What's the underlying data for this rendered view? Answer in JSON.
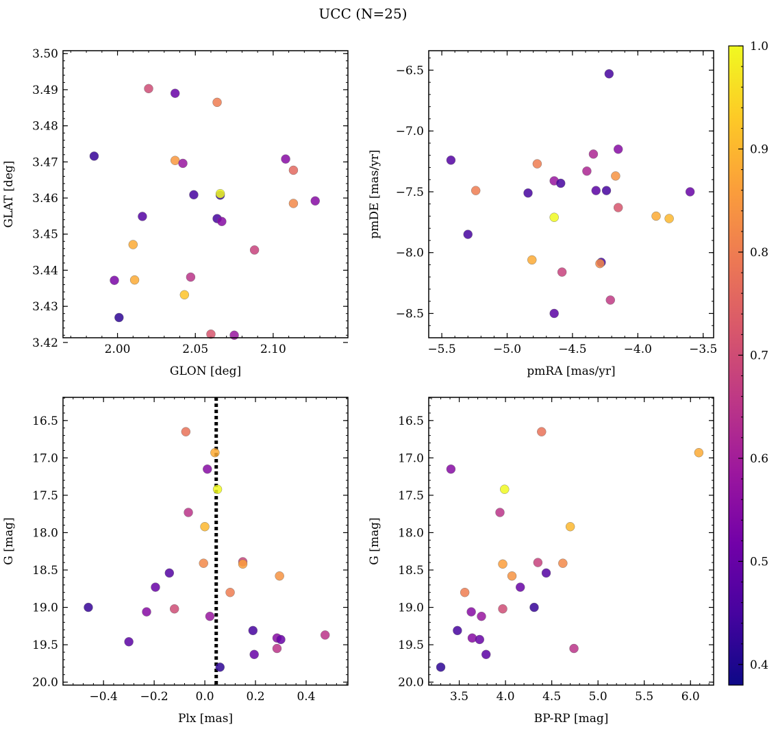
{
  "figure": {
    "title": "UCC (N=25)"
  },
  "colorbar": {
    "colormap": "plasma",
    "min": 0.38,
    "max": 1.0,
    "ticks": [
      0.4,
      0.5,
      0.6,
      0.7,
      0.8,
      0.9,
      1.0
    ],
    "tick_labels": [
      "0.4",
      "0.5",
      "0.6",
      "0.7",
      "0.8",
      "0.9",
      "1.0"
    ]
  },
  "colormap_stops": [
    "#0d0887",
    "#46039f",
    "#7201a8",
    "#9c179e",
    "#bd3786",
    "#d8576b",
    "#ed7953",
    "#fb9f3a",
    "#fdca26",
    "#f0f921"
  ],
  "chart_data": [
    {
      "id": "glon-glat",
      "type": "scatter",
      "xlabel": "GLON [deg]",
      "ylabel": "GLAT [deg]",
      "xlim": [
        1.965,
        2.148
      ],
      "ylim": [
        3.4213,
        3.5008
      ],
      "xticks": [
        2.0,
        2.05,
        2.1
      ],
      "xtick_labels": [
        "2.00",
        "2.05",
        "2.10"
      ],
      "yticks": [
        3.42,
        3.43,
        3.44,
        3.45,
        3.46,
        3.47,
        3.48,
        3.49,
        3.5
      ],
      "ytick_labels": [
        "3.42",
        "3.43",
        "3.44",
        "3.45",
        "3.46",
        "3.47",
        "3.48",
        "3.49",
        "3.50"
      ],
      "points": [
        {
          "x": 2.02,
          "y": 3.4903,
          "c": 0.7
        },
        {
          "x": 2.037,
          "y": 3.489,
          "c": 0.5
        },
        {
          "x": 2.064,
          "y": 3.4865,
          "c": 0.8
        },
        {
          "x": 1.985,
          "y": 3.4716,
          "c": 0.43
        },
        {
          "x": 2.037,
          "y": 3.4704,
          "c": 0.85
        },
        {
          "x": 2.042,
          "y": 3.4696,
          "c": 0.58
        },
        {
          "x": 2.108,
          "y": 3.4708,
          "c": 0.55
        },
        {
          "x": 2.113,
          "y": 3.4677,
          "c": 0.76
        },
        {
          "x": 2.049,
          "y": 3.4609,
          "c": 0.45
        },
        {
          "x": 2.066,
          "y": 3.4608,
          "c": 0.42
        },
        {
          "x": 2.066,
          "y": 3.4612,
          "c": 1.0
        },
        {
          "x": 2.127,
          "y": 3.4592,
          "c": 0.55
        },
        {
          "x": 2.113,
          "y": 3.4585,
          "c": 0.82
        },
        {
          "x": 2.016,
          "y": 3.4549,
          "c": 0.47
        },
        {
          "x": 2.064,
          "y": 3.4543,
          "c": 0.45
        },
        {
          "x": 2.067,
          "y": 3.4535,
          "c": 0.55
        },
        {
          "x": 2.088,
          "y": 3.4456,
          "c": 0.68
        },
        {
          "x": 2.01,
          "y": 3.4471,
          "c": 0.88
        },
        {
          "x": 1.998,
          "y": 3.4372,
          "c": 0.53
        },
        {
          "x": 2.011,
          "y": 3.4373,
          "c": 0.88
        },
        {
          "x": 2.047,
          "y": 3.4381,
          "c": 0.65
        },
        {
          "x": 2.043,
          "y": 3.4332,
          "c": 0.92
        },
        {
          "x": 2.001,
          "y": 3.4269,
          "c": 0.42
        },
        {
          "x": 2.06,
          "y": 3.4223,
          "c": 0.72
        },
        {
          "x": 2.075,
          "y": 3.422,
          "c": 0.58
        }
      ]
    },
    {
      "id": "pmra-pmde",
      "type": "scatter",
      "xlabel": "pmRA [mas/yr]",
      "ylabel": "pmDE [mas/yr]",
      "xlim": [
        -5.6,
        -3.42
      ],
      "ylim": [
        -8.7,
        -6.34
      ],
      "xticks": [
        -5.5,
        -5.0,
        -4.5,
        -4.0,
        -3.5
      ],
      "xtick_labels": [
        "−5.5",
        "−5.0",
        "−4.5",
        "−4.0",
        "−3.5"
      ],
      "yticks": [
        -8.5,
        -8.0,
        -7.5,
        -7.0,
        -6.5
      ],
      "ytick_labels": [
        "−8.5",
        "−8.0",
        "−7.5",
        "−7.0",
        "−6.5"
      ],
      "points": [
        {
          "x": -4.22,
          "y": -6.53,
          "c": 0.45
        },
        {
          "x": -5.43,
          "y": -7.24,
          "c": 0.47
        },
        {
          "x": -4.34,
          "y": -7.19,
          "c": 0.62
        },
        {
          "x": -4.15,
          "y": -7.15,
          "c": 0.55
        },
        {
          "x": -4.77,
          "y": -7.27,
          "c": 0.8
        },
        {
          "x": -4.39,
          "y": -7.33,
          "c": 0.62
        },
        {
          "x": -4.17,
          "y": -7.37,
          "c": 0.84
        },
        {
          "x": -4.64,
          "y": -7.41,
          "c": 0.58
        },
        {
          "x": -4.59,
          "y": -7.43,
          "c": 0.45
        },
        {
          "x": -5.24,
          "y": -7.49,
          "c": 0.8
        },
        {
          "x": -4.32,
          "y": -7.49,
          "c": 0.48
        },
        {
          "x": -4.24,
          "y": -7.49,
          "c": 0.45
        },
        {
          "x": -4.84,
          "y": -7.51,
          "c": 0.45
        },
        {
          "x": -3.6,
          "y": -7.5,
          "c": 0.5
        },
        {
          "x": -4.15,
          "y": -7.63,
          "c": 0.72
        },
        {
          "x": -4.64,
          "y": -7.71,
          "c": 1.0
        },
        {
          "x": -3.86,
          "y": -7.7,
          "c": 0.88
        },
        {
          "x": -3.76,
          "y": -7.72,
          "c": 0.9
        },
        {
          "x": -5.3,
          "y": -7.85,
          "c": 0.45
        },
        {
          "x": -4.81,
          "y": -8.06,
          "c": 0.88
        },
        {
          "x": -4.28,
          "y": -8.08,
          "c": 0.45
        },
        {
          "x": -4.29,
          "y": -8.09,
          "c": 0.82
        },
        {
          "x": -4.58,
          "y": -8.16,
          "c": 0.68
        },
        {
          "x": -4.21,
          "y": -8.39,
          "c": 0.66
        },
        {
          "x": -4.64,
          "y": -8.5,
          "c": 0.48
        }
      ]
    },
    {
      "id": "plx-g",
      "type": "scatter",
      "xlabel": "Plx [mas]",
      "ylabel": "G [mag]",
      "xlim": [
        -0.56,
        0.565
      ],
      "ylim": [
        20.04,
        16.19
      ],
      "xticks": [
        -0.4,
        -0.2,
        0.0,
        0.2,
        0.4
      ],
      "xtick_labels": [
        "−0.4",
        "−0.2",
        "0.0",
        "0.2",
        "0.4"
      ],
      "yticks": [
        16.5,
        17.0,
        17.5,
        18.0,
        18.5,
        19.0,
        19.5,
        20.0
      ],
      "ytick_labels": [
        "16.5",
        "17.0",
        "17.5",
        "18.0",
        "18.5",
        "19.0",
        "19.5",
        "20.0"
      ],
      "vline": {
        "x": 0.045,
        "style": "dotted",
        "color": "#000000"
      },
      "points": [
        {
          "x": -0.075,
          "y": 16.65,
          "c": 0.78
        },
        {
          "x": 0.04,
          "y": 16.93,
          "c": 0.88
        },
        {
          "x": 0.01,
          "y": 17.15,
          "c": 0.55
        },
        {
          "x": 0.05,
          "y": 17.42,
          "c": 1.0
        },
        {
          "x": -0.065,
          "y": 17.73,
          "c": 0.65
        },
        {
          "x": 0.0,
          "y": 17.92,
          "c": 0.9
        },
        {
          "x": -0.005,
          "y": 18.41,
          "c": 0.82
        },
        {
          "x": 0.15,
          "y": 18.39,
          "c": 0.68
        },
        {
          "x": 0.15,
          "y": 18.42,
          "c": 0.86
        },
        {
          "x": 0.295,
          "y": 18.58,
          "c": 0.84
        },
        {
          "x": -0.14,
          "y": 18.54,
          "c": 0.47
        },
        {
          "x": 0.1,
          "y": 18.8,
          "c": 0.8
        },
        {
          "x": -0.195,
          "y": 18.73,
          "c": 0.5
        },
        {
          "x": -0.46,
          "y": 19.0,
          "c": 0.43
        },
        {
          "x": -0.23,
          "y": 19.06,
          "c": 0.55
        },
        {
          "x": -0.12,
          "y": 19.02,
          "c": 0.7
        },
        {
          "x": 0.02,
          "y": 19.12,
          "c": 0.58
        },
        {
          "x": 0.19,
          "y": 19.31,
          "c": 0.45
        },
        {
          "x": 0.475,
          "y": 19.37,
          "c": 0.65
        },
        {
          "x": 0.285,
          "y": 19.41,
          "c": 0.55
        },
        {
          "x": 0.3,
          "y": 19.43,
          "c": 0.5
        },
        {
          "x": -0.3,
          "y": 19.46,
          "c": 0.48
        },
        {
          "x": 0.285,
          "y": 19.55,
          "c": 0.65
        },
        {
          "x": 0.195,
          "y": 19.63,
          "c": 0.5
        },
        {
          "x": 0.06,
          "y": 19.8,
          "c": 0.42
        }
      ]
    },
    {
      "id": "bprp-g",
      "type": "scatter",
      "xlabel": "BP-RP [mag]",
      "ylabel": "G [mag]",
      "xlim": [
        3.17,
        6.25
      ],
      "ylim": [
        20.04,
        16.19
      ],
      "xticks": [
        3.5,
        4.0,
        4.5,
        5.0,
        5.5,
        6.0
      ],
      "xtick_labels": [
        "3.5",
        "4.0",
        "4.5",
        "5.0",
        "5.5",
        "6.0"
      ],
      "yticks": [
        16.5,
        17.0,
        17.5,
        18.0,
        18.5,
        19.0,
        19.5,
        20.0
      ],
      "ytick_labels": [
        "16.5",
        "17.0",
        "17.5",
        "18.0",
        "18.5",
        "19.0",
        "19.5",
        "20.0"
      ],
      "points": [
        {
          "x": 4.39,
          "y": 16.65,
          "c": 0.78
        },
        {
          "x": 6.09,
          "y": 16.93,
          "c": 0.88
        },
        {
          "x": 3.41,
          "y": 17.15,
          "c": 0.55
        },
        {
          "x": 3.99,
          "y": 17.42,
          "c": 1.0
        },
        {
          "x": 3.94,
          "y": 17.73,
          "c": 0.65
        },
        {
          "x": 4.7,
          "y": 17.92,
          "c": 0.9
        },
        {
          "x": 3.97,
          "y": 18.42,
          "c": 0.86
        },
        {
          "x": 4.35,
          "y": 18.4,
          "c": 0.68
        },
        {
          "x": 4.62,
          "y": 18.41,
          "c": 0.82
        },
        {
          "x": 4.07,
          "y": 18.58,
          "c": 0.84
        },
        {
          "x": 4.44,
          "y": 18.54,
          "c": 0.47
        },
        {
          "x": 3.56,
          "y": 18.8,
          "c": 0.8
        },
        {
          "x": 4.16,
          "y": 18.73,
          "c": 0.5
        },
        {
          "x": 4.31,
          "y": 19.0,
          "c": 0.43
        },
        {
          "x": 3.63,
          "y": 19.06,
          "c": 0.55
        },
        {
          "x": 3.97,
          "y": 19.02,
          "c": 0.7
        },
        {
          "x": 3.74,
          "y": 19.12,
          "c": 0.58
        },
        {
          "x": 3.48,
          "y": 19.31,
          "c": 0.45
        },
        {
          "x": 3.64,
          "y": 19.41,
          "c": 0.55
        },
        {
          "x": 3.72,
          "y": 19.43,
          "c": 0.5
        },
        {
          "x": 4.74,
          "y": 19.55,
          "c": 0.65
        },
        {
          "x": 3.79,
          "y": 19.63,
          "c": 0.48
        },
        {
          "x": 3.3,
          "y": 19.8,
          "c": 0.42
        }
      ]
    }
  ]
}
